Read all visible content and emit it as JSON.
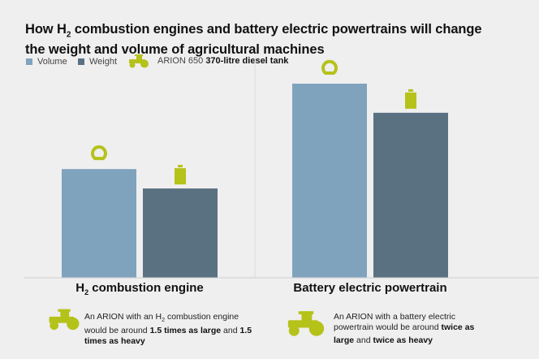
{
  "title": {
    "pre": "How H",
    "sub": "2",
    "post": " combustion engines and battery electric powertrains will change",
    "line2": "the weight and volume of agricultural machines"
  },
  "legend": {
    "volume": "Volume",
    "weight": "Weight",
    "reference_model": "ARION 650",
    "reference_bold": "370-litre diesel tank",
    "reference_icon": "tractor-icon"
  },
  "colors": {
    "volume": "#7fa3bd",
    "weight": "#5a7182",
    "accent": "#b5c21a",
    "background": "#efefef"
  },
  "chart_data": {
    "type": "bar",
    "categories": [
      "H2 combustion engine",
      "Battery electric powertrain"
    ],
    "series": [
      {
        "name": "Volume",
        "values": [
          56,
          100
        ],
        "icon": "volume-ring-icon"
      },
      {
        "name": "Weight",
        "values": [
          46,
          85
        ],
        "icon": "weight-icon"
      }
    ],
    "ylim": [
      0,
      100
    ],
    "axis": "none",
    "grid": false,
    "legend_placement": "top-left"
  },
  "categories": [
    {
      "label_pre": "H",
      "label_sub": "2",
      "label_post": " combustion engine",
      "note": {
        "t1": "An ARION with an H",
        "sub": "2",
        "t2": " combustion engine would be around ",
        "b1": "1.5 times as large",
        "t3": " and ",
        "b2": "1.5 times as heavy",
        "t4": ""
      }
    },
    {
      "label_pre": "Battery electric powertrain",
      "label_sub": "",
      "label_post": "",
      "note": {
        "t1": "An ARION with a battery electric powertrain would be around ",
        "sub": "",
        "t2": "",
        "b1": "twice as large",
        "t3": " and ",
        "b2": "twice as heavy",
        "t4": ""
      }
    }
  ]
}
